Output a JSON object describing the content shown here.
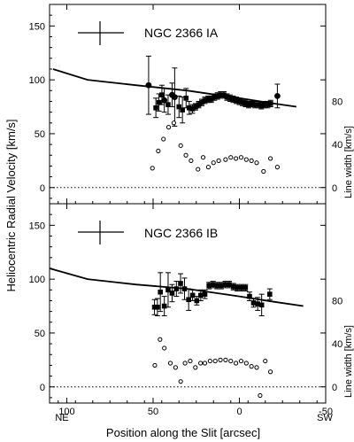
{
  "figure": {
    "y_label": "Heliocentric Radial Velocity [km/s]",
    "x_label": "Position along the Slit [arcsec]",
    "x_direction_labels": [
      "NE",
      "SW"
    ],
    "right_axis_label": "Line width [km/s]"
  },
  "chart_data": [
    {
      "type": "scatter",
      "title": "NGC 2366 IA",
      "xlim": [
        110,
        -50
      ],
      "ylim": [
        -15,
        170
      ],
      "x_ticks": [
        100,
        50,
        0,
        -50
      ],
      "y_ticks": [
        0,
        50,
        100,
        150
      ],
      "width_axis_ticks": [
        0,
        40,
        80
      ],
      "zero_line": "dotted",
      "model_curve": {
        "x": [
          108,
          88,
          60,
          30,
          0,
          -20,
          -33
        ],
        "y": [
          110,
          100,
          95,
          90,
          83,
          78,
          75
        ]
      },
      "series": [
        {
          "marker": "filled-circle",
          "points": [
            {
              "x": 52.6,
              "y": 95.0,
              "err": 27
            },
            {
              "x": 43.5,
              "y": 81.0,
              "err": 11
            },
            {
              "x": 39.0,
              "y": 86.0,
              "err": 11
            },
            {
              "x": 37.5,
              "y": 84.0,
              "err": 27
            },
            {
              "x": -22.0,
              "y": 85.0,
              "err": 11
            }
          ]
        },
        {
          "marker": "filled-square",
          "points": [
            {
              "x": 48.4,
              "y": 74.0,
              "err": 9
            },
            {
              "x": 46.6,
              "y": 79.0,
              "err": 8
            },
            {
              "x": 44.9,
              "y": 86.0,
              "err": 9
            },
            {
              "x": 41.3,
              "y": 77.0,
              "err": 9
            },
            {
              "x": 35.0,
              "y": 75.0,
              "err": 10
            },
            {
              "x": 33.0,
              "y": 72.0,
              "err": 12
            },
            {
              "x": 30.9,
              "y": 83.0,
              "err": 9
            },
            {
              "x": 29.1,
              "y": 74.0,
              "err": 6
            },
            {
              "x": 27.2,
              "y": 73.0,
              "err": 4
            },
            {
              "x": 25.4,
              "y": 75.0,
              "err": 3
            },
            {
              "x": 23.6,
              "y": 77.0,
              "err": 3
            },
            {
              "x": 21.8,
              "y": 79.0,
              "err": 3
            },
            {
              "x": 20.0,
              "y": 81.0,
              "err": 3
            },
            {
              "x": 18.1,
              "y": 82.0,
              "err": 3
            },
            {
              "x": 16.3,
              "y": 82.0,
              "err": 3
            },
            {
              "x": 14.5,
              "y": 84.0,
              "err": 3
            },
            {
              "x": 12.7,
              "y": 85.0,
              "err": 3
            },
            {
              "x": 10.9,
              "y": 86.0,
              "err": 3
            },
            {
              "x": 9.0,
              "y": 86.0,
              "err": 3
            },
            {
              "x": 7.2,
              "y": 84.0,
              "err": 3
            },
            {
              "x": 5.4,
              "y": 83.0,
              "err": 3
            },
            {
              "x": 3.6,
              "y": 82.0,
              "err": 3
            },
            {
              "x": 1.8,
              "y": 81.0,
              "err": 3
            },
            {
              "x": 0.0,
              "y": 80.0,
              "err": 3
            },
            {
              "x": -1.8,
              "y": 79.0,
              "err": 3
            },
            {
              "x": -3.6,
              "y": 78.0,
              "err": 3
            },
            {
              "x": -5.4,
              "y": 77.0,
              "err": 3
            },
            {
              "x": -7.2,
              "y": 78.0,
              "err": 3
            },
            {
              "x": -9.0,
              "y": 77.0,
              "err": 3
            },
            {
              "x": -10.9,
              "y": 77.0,
              "err": 3
            },
            {
              "x": -12.7,
              "y": 76.0,
              "err": 3
            },
            {
              "x": -14.5,
              "y": 77.0,
              "err": 3
            },
            {
              "x": -16.3,
              "y": 77.0,
              "err": 3
            },
            {
              "x": -18.1,
              "y": 78.0,
              "err": 3
            }
          ]
        },
        {
          "marker": "open-circle",
          "points": [
            {
              "x": 50.4,
              "y": 18
            },
            {
              "x": 47.0,
              "y": 34
            },
            {
              "x": 44.0,
              "y": 45
            },
            {
              "x": 41.0,
              "y": 56
            },
            {
              "x": 38.0,
              "y": 60
            },
            {
              "x": 34.0,
              "y": 39
            },
            {
              "x": 31.0,
              "y": 30
            },
            {
              "x": 28.0,
              "y": 25
            },
            {
              "x": 24.0,
              "y": 17
            },
            {
              "x": 21.0,
              "y": 28
            },
            {
              "x": 18.0,
              "y": 19
            },
            {
              "x": 15.0,
              "y": 23
            },
            {
              "x": 12.0,
              "y": 25
            },
            {
              "x": 8.0,
              "y": 26
            },
            {
              "x": 5.0,
              "y": 28
            },
            {
              "x": 2.0,
              "y": 27
            },
            {
              "x": -1.0,
              "y": 28
            },
            {
              "x": -4.0,
              "y": 26
            },
            {
              "x": -7.0,
              "y": 25
            },
            {
              "x": -10.0,
              "y": 23
            },
            {
              "x": -14.0,
              "y": 15
            },
            {
              "x": -18.0,
              "y": 27
            },
            {
              "x": -22.0,
              "y": 19
            }
          ]
        }
      ]
    },
    {
      "type": "scatter",
      "title": "NGC 2366 IB",
      "xlim": [
        110,
        -50
      ],
      "ylim": [
        -15,
        170
      ],
      "x_ticks": [
        100,
        50,
        0,
        -50
      ],
      "y_ticks": [
        0,
        50,
        100,
        150
      ],
      "width_axis_ticks": [
        0,
        40,
        80
      ],
      "zero_line": "dotted",
      "model_curve": {
        "x": [
          110,
          88,
          60,
          30,
          0,
          -20,
          -37
        ],
        "y": [
          110,
          100,
          95,
          91,
          84,
          79,
          75
        ]
      },
      "series": [
        {
          "marker": "filled-square",
          "points": [
            {
              "x": 49.2,
              "y": 74.0,
              "err": 7
            },
            {
              "x": 47.5,
              "y": 74.0,
              "err": 8
            },
            {
              "x": 45.8,
              "y": 88.0,
              "err": 18
            },
            {
              "x": 43.5,
              "y": 75.0,
              "err": 9
            },
            {
              "x": 41.3,
              "y": 90.0,
              "err": 16
            },
            {
              "x": 39.0,
              "y": 87.0,
              "err": 8
            },
            {
              "x": 36.5,
              "y": 91.0,
              "err": 7
            },
            {
              "x": 34.1,
              "y": 96.0,
              "err": 9
            },
            {
              "x": 31.8,
              "y": 91.0,
              "err": 10
            },
            {
              "x": 29.4,
              "y": 81.0,
              "err": 10
            },
            {
              "x": 27.1,
              "y": 85.0,
              "err": 5
            },
            {
              "x": 24.7,
              "y": 80.0,
              "err": 4
            },
            {
              "x": 22.4,
              "y": 85.0,
              "err": 5
            },
            {
              "x": 20.0,
              "y": 86.0,
              "err": 4
            },
            {
              "x": 17.6,
              "y": 94.0,
              "err": 3
            },
            {
              "x": 15.3,
              "y": 95.0,
              "err": 3
            },
            {
              "x": 12.9,
              "y": 94.0,
              "err": 3
            },
            {
              "x": 10.6,
              "y": 94.0,
              "err": 3
            },
            {
              "x": 8.2,
              "y": 95.0,
              "err": 3
            },
            {
              "x": 5.9,
              "y": 95.0,
              "err": 3
            },
            {
              "x": 3.5,
              "y": 93.0,
              "err": 3
            },
            {
              "x": 1.2,
              "y": 92.0,
              "err": 3
            },
            {
              "x": -1.2,
              "y": 92.0,
              "err": 3
            },
            {
              "x": -3.5,
              "y": 92.0,
              "err": 3
            },
            {
              "x": -5.9,
              "y": 84.0,
              "err": 4
            },
            {
              "x": -8.2,
              "y": 78.0,
              "err": 4
            },
            {
              "x": -10.6,
              "y": 77.0,
              "err": 6
            },
            {
              "x": -12.9,
              "y": 76.0,
              "err": 10
            },
            {
              "x": -17.6,
              "y": 86.0,
              "err": 5
            }
          ]
        },
        {
          "marker": "open-circle",
          "points": [
            {
              "x": 49.0,
              "y": 20
            },
            {
              "x": 46.0,
              "y": 44
            },
            {
              "x": 43.5,
              "y": 36
            },
            {
              "x": 40.0,
              "y": 22
            },
            {
              "x": 37.0,
              "y": 18
            },
            {
              "x": 34.0,
              "y": 5
            },
            {
              "x": 31.5,
              "y": 22
            },
            {
              "x": 28.5,
              "y": 24
            },
            {
              "x": 25.5,
              "y": 18
            },
            {
              "x": 22.5,
              "y": 22
            },
            {
              "x": 20.0,
              "y": 22
            },
            {
              "x": 17.0,
              "y": 24
            },
            {
              "x": 14.0,
              "y": 24
            },
            {
              "x": 11.0,
              "y": 25
            },
            {
              "x": 8.0,
              "y": 25
            },
            {
              "x": 5.0,
              "y": 24
            },
            {
              "x": 2.0,
              "y": 22
            },
            {
              "x": -1.0,
              "y": 24
            },
            {
              "x": -4.0,
              "y": 22
            },
            {
              "x": -7.0,
              "y": 19
            },
            {
              "x": -10.0,
              "y": 18
            },
            {
              "x": -12.0,
              "y": -8
            },
            {
              "x": -15.0,
              "y": 24
            },
            {
              "x": -18.0,
              "y": 14
            }
          ]
        }
      ]
    }
  ]
}
